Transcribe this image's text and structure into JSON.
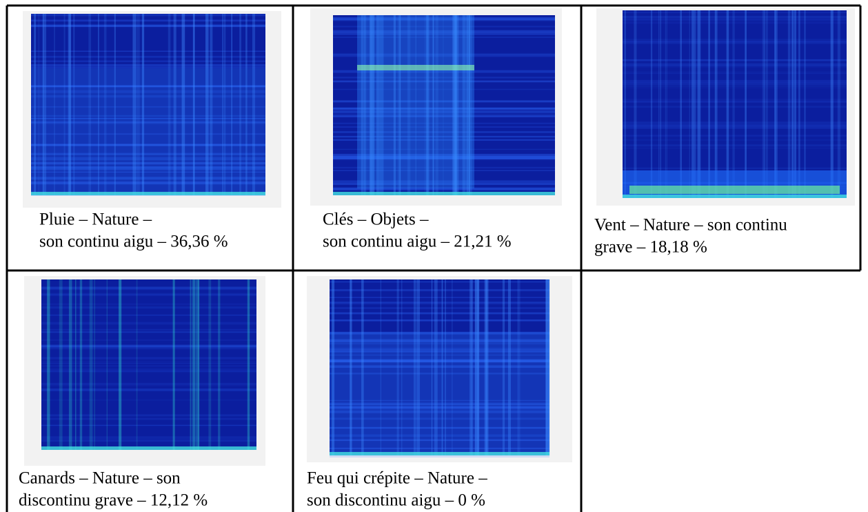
{
  "cells": [
    {
      "caption": [
        "Pluie – Nature –",
        "son continu aigu – 36,36 %"
      ]
    },
    {
      "caption": [
        "Clés – Objets –",
        "son continu aigu – 21,21 %"
      ]
    },
    {
      "caption": [
        "Vent – Nature – son continu",
        "grave – 18,18 %"
      ]
    },
    {
      "caption": [
        "Canards – Nature – son",
        "discontinu grave – 12,12 %"
      ]
    },
    {
      "caption": [
        "Feu qui crépite – Nature –",
        "son discontinu aigu – 0 %"
      ]
    }
  ]
}
